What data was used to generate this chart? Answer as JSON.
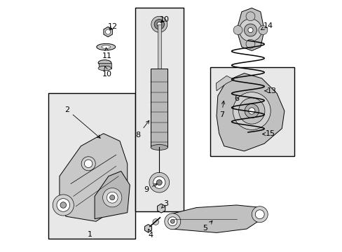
{
  "background_color": "#ffffff",
  "line_color": "#000000",
  "figsize": [
    4.89,
    3.6
  ],
  "dpi": 100,
  "bg_box": "#e8e8e8"
}
